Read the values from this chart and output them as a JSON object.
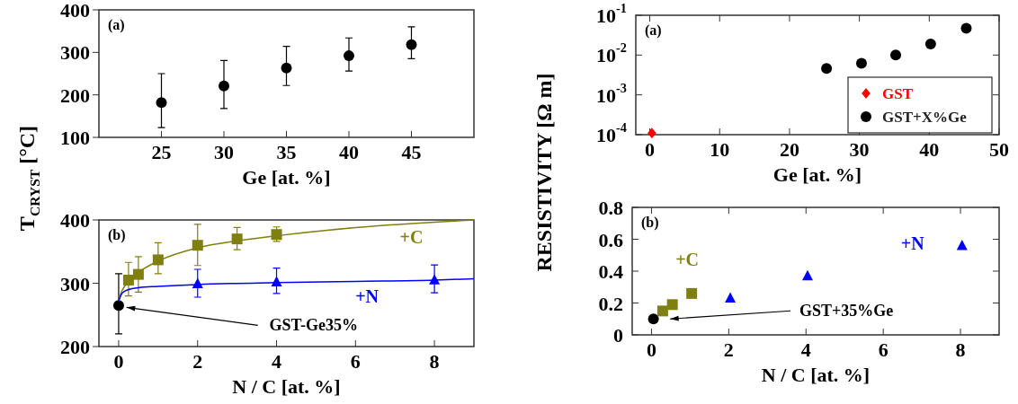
{
  "chart_data": [
    {
      "type": "scatter",
      "xlabel": "Ge [at. %]",
      "ylabel": "T$_{CRYST}$ [°C]",
      "xlim": [
        20,
        50
      ],
      "ylim": [
        100,
        400
      ],
      "xticks": [
        25,
        30,
        35,
        40,
        45
      ],
      "yticks": [
        100,
        200,
        300,
        400
      ],
      "marker": "circle",
      "annotations": [
        "(a)"
      ],
      "series": [
        {
          "color": "#000000",
          "x": [
            25,
            30,
            35,
            40,
            45
          ],
          "values": [
            182,
            221,
            263,
            292,
            318
          ],
          "errors": [
            [
              123,
              250
            ],
            [
              168,
              281
            ],
            [
              222,
              314
            ],
            [
              256,
              334
            ],
            [
              285,
              360
            ]
          ]
        }
      ]
    },
    {
      "type": "scatter",
      "xlabel": "N / C [at. %]",
      "xlim": [
        -0.5,
        9
      ],
      "ylim": [
        200,
        400
      ],
      "xticks": [
        0,
        2,
        4,
        6,
        8
      ],
      "yticks": [
        200,
        300,
        400
      ],
      "annotations": [
        "(b)",
        {
          "text": "GST-Ge35%",
          "x": 0.2,
          "y": 262
        }
      ],
      "series": [
        {
          "color": "#000000",
          "marker": "circle",
          "x": [
            0
          ],
          "values": [
            265
          ],
          "errors": [
            [
              220,
              315
            ]
          ]
        },
        {
          "name": "+C",
          "color": "#808012",
          "marker": "square",
          "x": [
            0.25,
            0.5,
            1,
            2,
            3,
            4
          ],
          "values": [
            305,
            314,
            337,
            360,
            370,
            377
          ],
          "errors": [
            [
              280,
              333
            ],
            [
              286,
              342
            ],
            [
              315,
              364
            ],
            [
              328,
              393
            ],
            [
              353,
              388
            ],
            [
              366,
              389
            ]
          ]
        },
        {
          "type": "line",
          "color": "#808012",
          "marker": "none",
          "x": [
            0,
            0.05,
            0.1,
            0.25,
            0.5,
            1,
            2,
            3,
            4,
            6,
            9
          ],
          "values": [
            272,
            283,
            290,
            303,
            317,
            335,
            356,
            367,
            375,
            388,
            400
          ]
        },
        {
          "name": "+N",
          "color": "#0000ff",
          "marker": "triangle",
          "x": [
            2,
            4,
            8
          ],
          "values": [
            299,
            302,
            305
          ],
          "errors": [
            [
              278,
              322
            ],
            [
              284,
              324
            ],
            [
              285,
              329
            ]
          ]
        },
        {
          "type": "line",
          "color": "#0000ff",
          "marker": "none",
          "x": [
            0,
            0.05,
            0.1,
            0.25,
            0.5,
            1,
            2,
            4,
            6,
            8,
            9
          ],
          "values": [
            272,
            280,
            285,
            290,
            293,
            295,
            298,
            301,
            303,
            305,
            307
          ]
        }
      ]
    },
    {
      "type": "scatter",
      "xlabel": "Ge [at. %]",
      "ylabel": "RESISTIVITY [Ω m]",
      "xlim": [
        -2,
        50
      ],
      "ylim": [
        0.0001,
        0.1
      ],
      "log": "y",
      "xticks": [
        0,
        10,
        20,
        30,
        40,
        50
      ],
      "yticks": [
        {
          "value": 0.0001,
          "label": "10$^{-4}$"
        },
        {
          "value": 0.001,
          "label": "10$^{-3}$"
        },
        {
          "value": 0.01,
          "label": "10$^{-2}$"
        },
        {
          "value": 0.1,
          "label": "10$^{-1}$"
        }
      ],
      "legend": "bottom right",
      "annotations": [
        "(a)"
      ],
      "series": [
        {
          "name": "GST",
          "color": "#ff0000",
          "marker": "diamond",
          "x": [
            0.3
          ],
          "values": [
            0.00011
          ]
        },
        {
          "name": "GST+X%Ge",
          "color": "#000000",
          "marker": "circle",
          "x": [
            25.3,
            30.3,
            35.2,
            40.2,
            45.3
          ],
          "values": [
            0.0046,
            0.0062,
            0.01,
            0.019,
            0.047
          ]
        }
      ]
    },
    {
      "type": "scatter",
      "xlabel": "N / C [at. %]",
      "xlim": [
        -0.5,
        9
      ],
      "ylim": [
        0,
        0.8
      ],
      "xticks": [
        0,
        2,
        4,
        6,
        8
      ],
      "yticks": [
        0,
        0.2,
        0.4,
        0.6,
        0.8
      ],
      "annotations": [
        "(b)",
        {
          "text": "GST+35%Ge",
          "x": 0.48,
          "y": 0.1
        }
      ],
      "series": [
        {
          "color": "#000000",
          "marker": "circle",
          "x": [
            0.05
          ],
          "values": [
            0.1
          ]
        },
        {
          "name": "+C",
          "color": "#808012",
          "marker": "square",
          "x": [
            0.29,
            0.54,
            1.04
          ],
          "values": [
            0.15,
            0.19,
            0.26
          ]
        },
        {
          "name": "+N",
          "color": "#0000ff",
          "marker": "triangle",
          "x": [
            2.04,
            4.04,
            8.04
          ],
          "values": [
            0.23,
            0.37,
            0.56
          ]
        }
      ]
    }
  ]
}
